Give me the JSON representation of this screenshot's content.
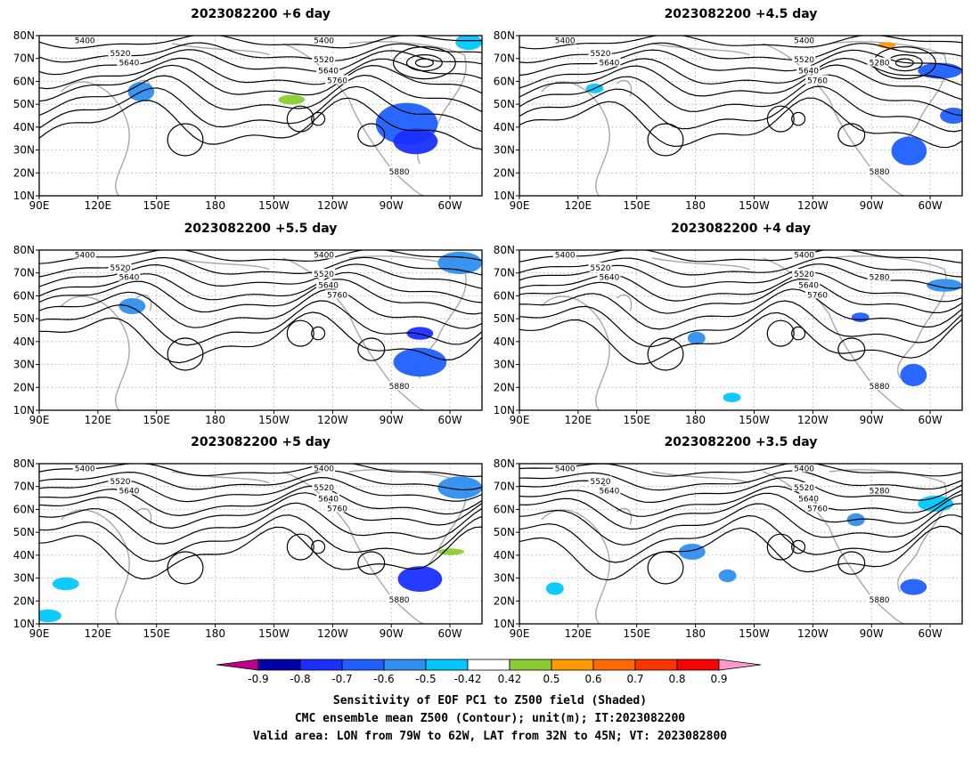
{
  "panels": [
    {
      "title": "2023082200  +6 day"
    },
    {
      "title": "2023082200  +4.5 day"
    },
    {
      "title": "2023082200  +5.5 day"
    },
    {
      "title": "2023082200  +4 day"
    },
    {
      "title": "2023082200  +5 day"
    },
    {
      "title": "2023082200  +3.5 day"
    }
  ],
  "axes": {
    "lon_labels": [
      "90E",
      "120E",
      "150E",
      "180",
      "150W",
      "120W",
      "90W",
      "60W"
    ],
    "lat_labels": [
      "80N",
      "70N",
      "60N",
      "50N",
      "40N",
      "30N",
      "20N",
      "10N"
    ]
  },
  "contour_labels": {
    "c5280": "5280",
    "c5400": "5400",
    "c5520": "5520",
    "c5640": "5640",
    "c5760": "5760",
    "c5880": "5880"
  },
  "colorbar": {
    "labels": [
      "-0.9",
      "-0.8",
      "-0.7",
      "-0.6",
      "-0.5",
      "-0.42",
      "0.42",
      "0.5",
      "0.6",
      "0.7",
      "0.8",
      "0.9"
    ],
    "colors": [
      "#0000aa",
      "#1a30ff",
      "#1f5fff",
      "#2f8ff0",
      "#00c8ff",
      "#ffffff",
      "#8ccc33",
      "#ff9900",
      "#ff6a00",
      "#ff3300",
      "#ff0000"
    ],
    "low_arrow_color": "#c0008c",
    "high_arrow_color": "#ff99cc"
  },
  "caption": {
    "line1": "Sensitivity of EOF PC1 to Z500 field (Shaded)",
    "line2": "CMC ensemble mean Z500 (Contour); unit(m); IT:2023082200",
    "line3": "Valid area: LON from 79W to 62W, LAT from 32N to 45N; VT: 2023082800"
  }
}
